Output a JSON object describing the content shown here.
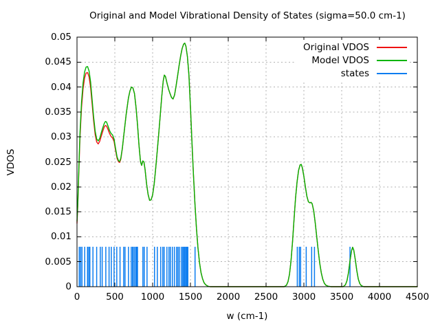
{
  "chart_data": {
    "type": "line",
    "title": "Original and Model Vibrational Density of States (sigma=50.0 cm-1)",
    "xlabel": "w (cm-1)",
    "ylabel": "VDOS",
    "xlim": [
      0,
      4500
    ],
    "ylim": [
      0,
      0.05
    ],
    "xticks": [
      0,
      500,
      1000,
      1500,
      2000,
      2500,
      3000,
      3500,
      4000,
      4500
    ],
    "xtick_labels": [
      "0",
      "500",
      "1000",
      "1500",
      "2000",
      "2500",
      "3000",
      "3500",
      "4000",
      "4500"
    ],
    "yticks": [
      0,
      0.005,
      0.01,
      0.015,
      0.02,
      0.025,
      0.03,
      0.035,
      0.04,
      0.045,
      0.05
    ],
    "ytick_labels": [
      "0",
      "0.005",
      "0.01",
      "0.015",
      "0.02",
      "0.025",
      "0.03",
      "0.035",
      "0.04",
      "0.045",
      "0.05"
    ],
    "grid": true,
    "grid_color": "#b0b0b0",
    "axis_color": "#000000",
    "legend_position": "top-right-opaque",
    "series": [
      {
        "name": "Original VDOS",
        "type": "line",
        "color": "#ee1111",
        "points": [
          [
            0,
            0.0127
          ],
          [
            10,
            0.016
          ],
          [
            25,
            0.0233
          ],
          [
            40,
            0.0301
          ],
          [
            60,
            0.0359
          ],
          [
            80,
            0.0396
          ],
          [
            100,
            0.0418
          ],
          [
            120,
            0.0428
          ],
          [
            140,
            0.0429
          ],
          [
            160,
            0.042
          ],
          [
            180,
            0.0399
          ],
          [
            200,
            0.0366
          ],
          [
            220,
            0.0332
          ],
          [
            240,
            0.0305
          ],
          [
            260,
            0.029
          ],
          [
            280,
            0.0286
          ],
          [
            300,
            0.0291
          ],
          [
            320,
            0.0301
          ],
          [
            340,
            0.0311
          ],
          [
            360,
            0.032
          ],
          [
            375,
            0.0323
          ],
          [
            390,
            0.0322
          ],
          [
            410,
            0.0315
          ],
          [
            430,
            0.0307
          ],
          [
            450,
            0.0301
          ],
          [
            470,
            0.0298
          ],
          [
            490,
            0.0291
          ],
          [
            510,
            0.0273
          ],
          [
            530,
            0.0257
          ],
          [
            550,
            0.025
          ],
          [
            565,
            0.0249
          ],
          [
            580,
            0.0256
          ],
          [
            600,
            0.0277
          ],
          [
            620,
            0.0305
          ],
          [
            650,
            0.0345
          ],
          [
            680,
            0.0378
          ],
          [
            700,
            0.0392
          ],
          [
            720,
            0.04
          ],
          [
            740,
            0.0398
          ],
          [
            760,
            0.0387
          ],
          [
            780,
            0.036
          ],
          [
            800,
            0.0325
          ],
          [
            820,
            0.0283
          ],
          [
            840,
            0.025
          ],
          [
            855,
            0.0243
          ],
          [
            870,
            0.0252
          ],
          [
            885,
            0.025
          ],
          [
            900,
            0.0235
          ],
          [
            920,
            0.0206
          ],
          [
            940,
            0.0185
          ],
          [
            960,
            0.0173
          ],
          [
            980,
            0.0174
          ],
          [
            1000,
            0.0184
          ],
          [
            1020,
            0.0205
          ],
          [
            1040,
            0.0236
          ],
          [
            1060,
            0.027
          ],
          [
            1080,
            0.0305
          ],
          [
            1100,
            0.0342
          ],
          [
            1120,
            0.038
          ],
          [
            1140,
            0.0412
          ],
          [
            1155,
            0.0424
          ],
          [
            1170,
            0.0421
          ],
          [
            1190,
            0.0408
          ],
          [
            1210,
            0.0396
          ],
          [
            1230,
            0.0387
          ],
          [
            1250,
            0.0379
          ],
          [
            1270,
            0.0376
          ],
          [
            1290,
            0.0384
          ],
          [
            1310,
            0.0402
          ],
          [
            1330,
            0.0422
          ],
          [
            1350,
            0.0443
          ],
          [
            1370,
            0.0462
          ],
          [
            1390,
            0.0477
          ],
          [
            1410,
            0.0486
          ],
          [
            1425,
            0.0488
          ],
          [
            1440,
            0.0482
          ],
          [
            1460,
            0.0461
          ],
          [
            1480,
            0.0424
          ],
          [
            1500,
            0.036
          ],
          [
            1520,
            0.029
          ],
          [
            1540,
            0.0224
          ],
          [
            1560,
            0.0165
          ],
          [
            1580,
            0.0116
          ],
          [
            1600,
            0.0077
          ],
          [
            1620,
            0.0048
          ],
          [
            1640,
            0.0028
          ],
          [
            1660,
            0.0016
          ],
          [
            1680,
            0.0008
          ],
          [
            1700,
            0.0004
          ],
          [
            1730,
            0.0001
          ],
          [
            1760,
            0
          ],
          [
            2740,
            0
          ],
          [
            2770,
            0.0003
          ],
          [
            2790,
            0.001
          ],
          [
            2810,
            0.0025
          ],
          [
            2830,
            0.0052
          ],
          [
            2850,
            0.009
          ],
          [
            2870,
            0.0135
          ],
          [
            2890,
            0.0178
          ],
          [
            2910,
            0.021
          ],
          [
            2930,
            0.0233
          ],
          [
            2950,
            0.0244
          ],
          [
            2965,
            0.0245
          ],
          [
            2980,
            0.0238
          ],
          [
            3000,
            0.0221
          ],
          [
            3020,
            0.02
          ],
          [
            3040,
            0.0181
          ],
          [
            3060,
            0.017
          ],
          [
            3080,
            0.0168
          ],
          [
            3095,
            0.0169
          ],
          [
            3110,
            0.0166
          ],
          [
            3130,
            0.0152
          ],
          [
            3150,
            0.0128
          ],
          [
            3170,
            0.01
          ],
          [
            3190,
            0.0072
          ],
          [
            3210,
            0.0047
          ],
          [
            3230,
            0.0028
          ],
          [
            3250,
            0.0015
          ],
          [
            3270,
            0.0007
          ],
          [
            3290,
            0.0003
          ],
          [
            3320,
            0.0001
          ],
          [
            3360,
            0
          ],
          [
            3520,
            0
          ],
          [
            3550,
            0.0004
          ],
          [
            3570,
            0.0012
          ],
          [
            3590,
            0.0028
          ],
          [
            3610,
            0.0052
          ],
          [
            3630,
            0.0072
          ],
          [
            3645,
            0.0079
          ],
          [
            3660,
            0.0073
          ],
          [
            3680,
            0.0054
          ],
          [
            3700,
            0.0032
          ],
          [
            3720,
            0.0015
          ],
          [
            3740,
            0.0006
          ],
          [
            3760,
            0.0002
          ],
          [
            3790,
            0
          ],
          [
            4500,
            0
          ]
        ]
      },
      {
        "name": "Model VDOS",
        "type": "line",
        "color": "#00b400",
        "points": [
          [
            0,
            0.0131
          ],
          [
            10,
            0.0165
          ],
          [
            25,
            0.024
          ],
          [
            40,
            0.031
          ],
          [
            60,
            0.037
          ],
          [
            80,
            0.0408
          ],
          [
            100,
            0.043
          ],
          [
            120,
            0.044
          ],
          [
            140,
            0.0441
          ],
          [
            160,
            0.0432
          ],
          [
            180,
            0.041
          ],
          [
            200,
            0.0375
          ],
          [
            220,
            0.034
          ],
          [
            240,
            0.0312
          ],
          [
            260,
            0.0296
          ],
          [
            280,
            0.0292
          ],
          [
            300,
            0.0297
          ],
          [
            320,
            0.0308
          ],
          [
            340,
            0.0318
          ],
          [
            360,
            0.0327
          ],
          [
            375,
            0.0331
          ],
          [
            390,
            0.033
          ],
          [
            410,
            0.0322
          ],
          [
            430,
            0.0313
          ],
          [
            450,
            0.0307
          ],
          [
            470,
            0.0304
          ],
          [
            490,
            0.0296
          ],
          [
            510,
            0.0277
          ],
          [
            530,
            0.026
          ],
          [
            550,
            0.0252
          ],
          [
            565,
            0.0251
          ],
          [
            580,
            0.0258
          ],
          [
            600,
            0.0278
          ],
          [
            620,
            0.0305
          ],
          [
            650,
            0.0345
          ],
          [
            680,
            0.0378
          ],
          [
            700,
            0.0392
          ],
          [
            720,
            0.04
          ],
          [
            740,
            0.0398
          ],
          [
            760,
            0.0387
          ],
          [
            780,
            0.036
          ],
          [
            800,
            0.0325
          ],
          [
            820,
            0.0283
          ],
          [
            840,
            0.025
          ],
          [
            855,
            0.0243
          ],
          [
            870,
            0.0252
          ],
          [
            885,
            0.025
          ],
          [
            900,
            0.0235
          ],
          [
            920,
            0.0206
          ],
          [
            940,
            0.0185
          ],
          [
            960,
            0.0173
          ],
          [
            980,
            0.0174
          ],
          [
            1000,
            0.0184
          ],
          [
            1020,
            0.0205
          ],
          [
            1040,
            0.0236
          ],
          [
            1060,
            0.027
          ],
          [
            1080,
            0.0305
          ],
          [
            1100,
            0.0342
          ],
          [
            1120,
            0.038
          ],
          [
            1140,
            0.0412
          ],
          [
            1155,
            0.0424
          ],
          [
            1170,
            0.0421
          ],
          [
            1190,
            0.0408
          ],
          [
            1210,
            0.0396
          ],
          [
            1230,
            0.0387
          ],
          [
            1250,
            0.0379
          ],
          [
            1270,
            0.0376
          ],
          [
            1290,
            0.0384
          ],
          [
            1310,
            0.0402
          ],
          [
            1330,
            0.0422
          ],
          [
            1350,
            0.0443
          ],
          [
            1370,
            0.0462
          ],
          [
            1390,
            0.0477
          ],
          [
            1410,
            0.0486
          ],
          [
            1425,
            0.0488
          ],
          [
            1440,
            0.0482
          ],
          [
            1460,
            0.0461
          ],
          [
            1480,
            0.0424
          ],
          [
            1500,
            0.036
          ],
          [
            1520,
            0.029
          ],
          [
            1540,
            0.0224
          ],
          [
            1560,
            0.0165
          ],
          [
            1580,
            0.0116
          ],
          [
            1600,
            0.0077
          ],
          [
            1620,
            0.0048
          ],
          [
            1640,
            0.0028
          ],
          [
            1660,
            0.0016
          ],
          [
            1680,
            0.0008
          ],
          [
            1700,
            0.0004
          ],
          [
            1730,
            0.0001
          ],
          [
            1760,
            0
          ],
          [
            2740,
            0
          ],
          [
            2770,
            0.0003
          ],
          [
            2790,
            0.001
          ],
          [
            2810,
            0.0025
          ],
          [
            2830,
            0.0052
          ],
          [
            2850,
            0.009
          ],
          [
            2870,
            0.0135
          ],
          [
            2890,
            0.0178
          ],
          [
            2910,
            0.021
          ],
          [
            2930,
            0.0233
          ],
          [
            2950,
            0.0244
          ],
          [
            2965,
            0.0245
          ],
          [
            2980,
            0.0238
          ],
          [
            3000,
            0.0221
          ],
          [
            3020,
            0.02
          ],
          [
            3040,
            0.0181
          ],
          [
            3060,
            0.017
          ],
          [
            3080,
            0.0168
          ],
          [
            3095,
            0.0169
          ],
          [
            3110,
            0.0166
          ],
          [
            3130,
            0.0152
          ],
          [
            3150,
            0.0128
          ],
          [
            3170,
            0.01
          ],
          [
            3190,
            0.0072
          ],
          [
            3210,
            0.0047
          ],
          [
            3230,
            0.0028
          ],
          [
            3250,
            0.0015
          ],
          [
            3270,
            0.0007
          ],
          [
            3290,
            0.0003
          ],
          [
            3320,
            0.0001
          ],
          [
            3360,
            0
          ],
          [
            3520,
            0
          ],
          [
            3550,
            0.0004
          ],
          [
            3570,
            0.0012
          ],
          [
            3590,
            0.0028
          ],
          [
            3610,
            0.0052
          ],
          [
            3630,
            0.0072
          ],
          [
            3645,
            0.0079
          ],
          [
            3660,
            0.0073
          ],
          [
            3680,
            0.0054
          ],
          [
            3700,
            0.0032
          ],
          [
            3720,
            0.0015
          ],
          [
            3740,
            0.0006
          ],
          [
            3760,
            0.0002
          ],
          [
            3790,
            0
          ],
          [
            4500,
            0
          ]
        ]
      },
      {
        "name": "states",
        "type": "impulses",
        "color": "#0a7cf0",
        "height": 0.008,
        "x": [
          30,
          48,
          66,
          102,
          139,
          155,
          170,
          211,
          260,
          308,
          333,
          381,
          424,
          454,
          490,
          526,
          569,
          617,
          635,
          681,
          717,
          735,
          744,
          762,
          780,
          790,
          800,
          871,
          889,
          926,
          1025,
          1062,
          1107,
          1134,
          1152,
          1189,
          1216,
          1234,
          1261,
          1288,
          1316,
          1334,
          1352,
          1379,
          1397,
          1410,
          1424,
          1438,
          1452,
          1466,
          1561,
          2913,
          2940,
          2957,
          3031,
          3103,
          3140,
          3610
        ]
      }
    ]
  }
}
